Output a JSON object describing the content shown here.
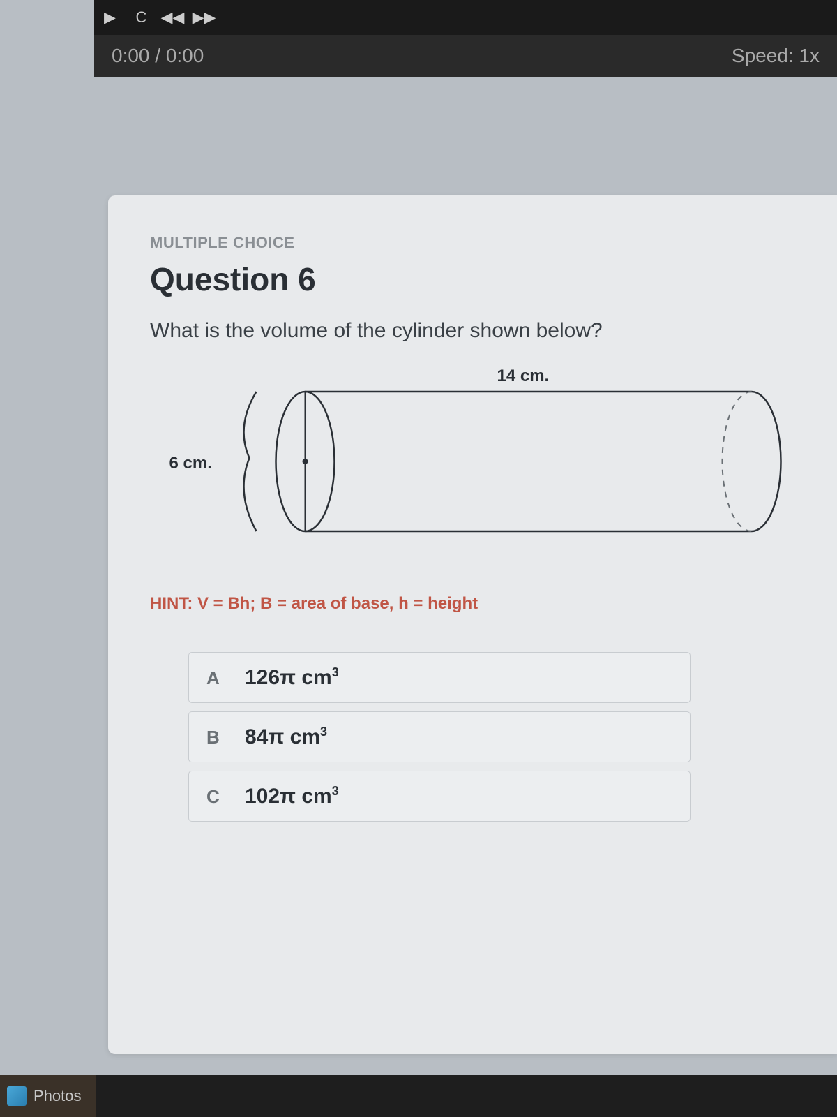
{
  "video": {
    "time": "0:00 / 0:00",
    "speed": "Speed: 1x"
  },
  "question": {
    "type_label": "MULTIPLE CHOICE",
    "title": "Question 6",
    "prompt": "What is the volume of the cylinder shown below?",
    "hint": "HINT: V = Bh; B = area of base, h = height"
  },
  "diagram": {
    "height_label": "6 cm.",
    "length_label": "14 cm.",
    "stroke": "#2a2f35",
    "dash_stroke": "#6a7075"
  },
  "choices": [
    {
      "letter": "A",
      "value": "126",
      "unit": "π cm",
      "sup": "3"
    },
    {
      "letter": "B",
      "value": "84",
      "unit": "π cm",
      "sup": "3"
    },
    {
      "letter": "C",
      "value": "102",
      "unit": "π cm",
      "sup": "3"
    }
  ],
  "taskbar": {
    "photos": "Photos"
  }
}
